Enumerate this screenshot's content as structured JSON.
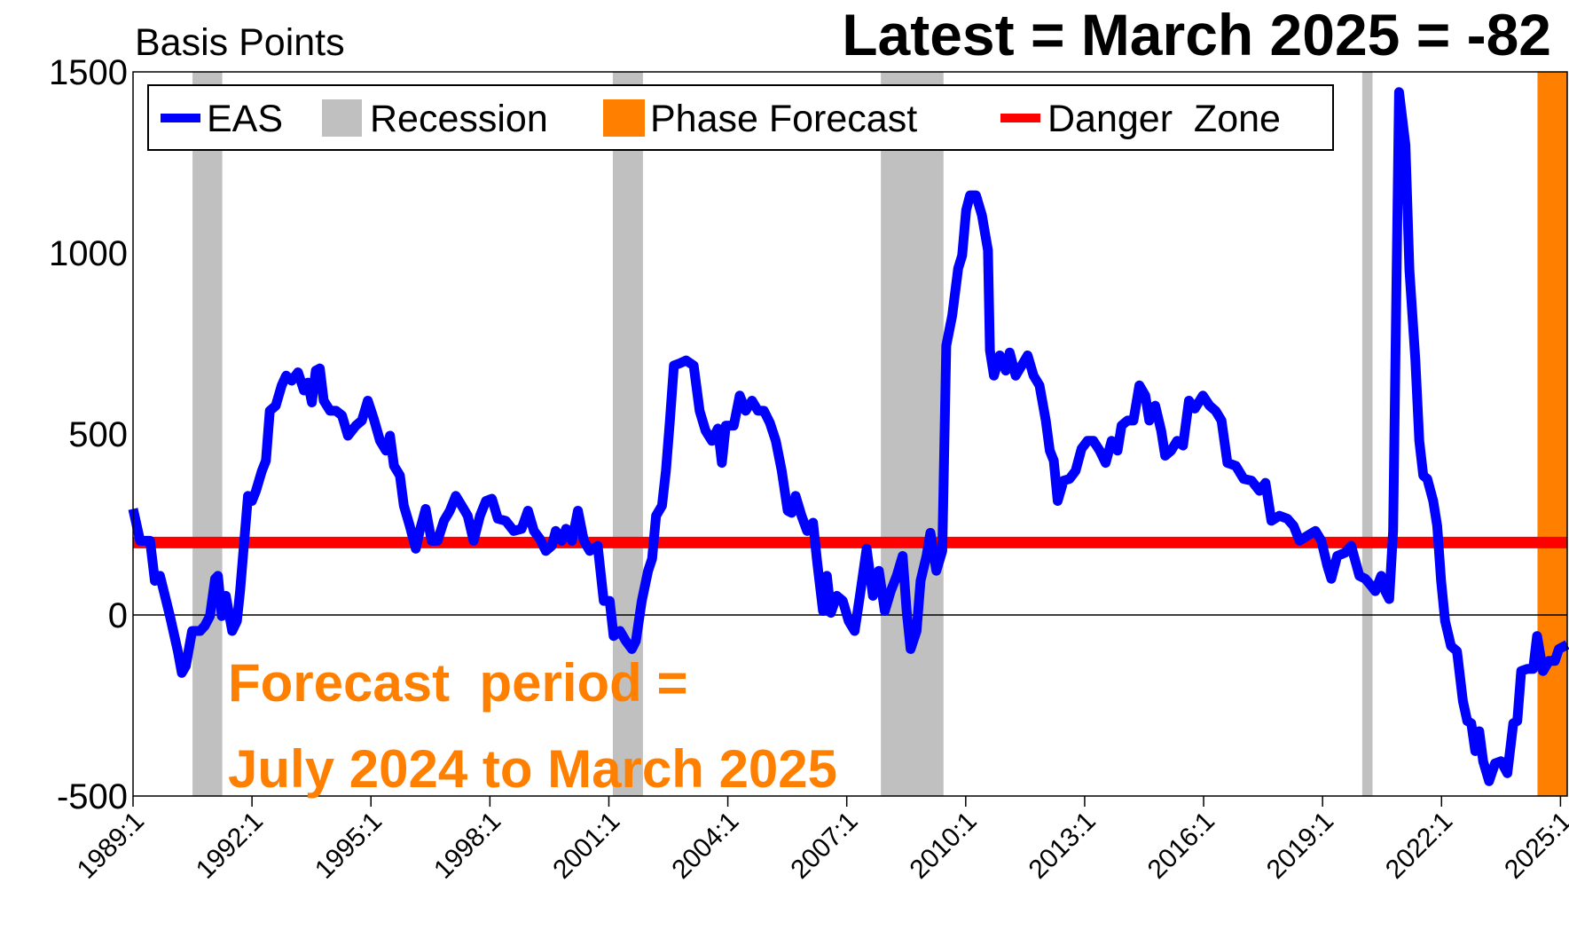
{
  "chart_data": {
    "type": "line",
    "title": "Latest = March 2025 = -82",
    "y_label": "Basis Points",
    "annotation": [
      "Forecast  period =",
      "July 2024 to March 2025"
    ],
    "xlim": [
      1989,
      2025.17
    ],
    "xticks": [
      {
        "value": 1989,
        "label": "1989:1"
      },
      {
        "value": 1992,
        "label": "1992:1"
      },
      {
        "value": 1995,
        "label": "1995:1"
      },
      {
        "value": 1998,
        "label": "1998:1"
      },
      {
        "value": 2001,
        "label": "2001:1"
      },
      {
        "value": 2004,
        "label": "2004:1"
      },
      {
        "value": 2007,
        "label": "2007:1"
      },
      {
        "value": 2010,
        "label": "2010:1"
      },
      {
        "value": 2013,
        "label": "2013:1"
      },
      {
        "value": 2016,
        "label": "2016:1"
      },
      {
        "value": 2019,
        "label": "2019:1"
      },
      {
        "value": 2022,
        "label": "2022:1"
      },
      {
        "value": 2025,
        "label": "2025:1"
      }
    ],
    "ylim": [
      -500,
      1500
    ],
    "yticks": [
      -500,
      0,
      500,
      1000,
      1500
    ],
    "grid": false,
    "legend": "top-left",
    "recessions": {
      "name": "Recession",
      "color": "#c0c0c0",
      "ranges": [
        [
          1990.5,
          1991.25
        ],
        [
          2001.1,
          2001.86
        ],
        [
          2007.86,
          2009.44
        ],
        [
          2020.0,
          2020.26
        ]
      ]
    },
    "forecast": {
      "name": "Phase Forecast",
      "color": "#ff8000",
      "range": [
        2024.42,
        2025.17
      ]
    },
    "danger": {
      "name": "Danger  Zone",
      "color": "#ff0000",
      "value": 200
    },
    "series": [
      {
        "name": "EAS",
        "color": "#0000ff",
        "x": [
          1989.0,
          1989.18,
          1989.43,
          1989.55,
          1989.68,
          1989.93,
          1990.13,
          1990.23,
          1990.33,
          1990.49,
          1990.69,
          1990.81,
          1990.94,
          1991.07,
          1991.14,
          1991.24,
          1991.34,
          1991.5,
          1991.62,
          1991.7,
          1991.9,
          1992.0,
          1992.1,
          1992.25,
          1992.35,
          1992.45,
          1992.6,
          1992.75,
          1992.86,
          1993.0,
          1993.16,
          1993.31,
          1993.41,
          1993.51,
          1993.61,
          1993.71,
          1993.81,
          1993.97,
          1994.12,
          1994.27,
          1994.42,
          1994.62,
          1994.77,
          1994.92,
          1995.07,
          1995.23,
          1995.38,
          1995.48,
          1995.58,
          1995.73,
          1995.83,
          1995.98,
          1996.13,
          1996.23,
          1996.38,
          1996.53,
          1996.68,
          1996.84,
          1996.99,
          1997.14,
          1997.29,
          1997.44,
          1997.59,
          1997.75,
          1997.9,
          1998.05,
          1998.2,
          1998.4,
          1998.6,
          1998.8,
          1998.96,
          1999.11,
          1999.26,
          1999.41,
          1999.56,
          1999.66,
          1999.81,
          1999.92,
          2000.07,
          2000.22,
          2000.37,
          2000.52,
          2000.72,
          2000.87,
          2001.02,
          2001.12,
          2001.28,
          2001.43,
          2001.58,
          2001.68,
          2001.83,
          2001.99,
          2002.09,
          2002.19,
          2002.34,
          2002.44,
          2002.54,
          2002.64,
          2002.79,
          2002.95,
          2003.14,
          2003.29,
          2003.44,
          2003.6,
          2003.75,
          2003.85,
          2003.95,
          2004.15,
          2004.3,
          2004.45,
          2004.61,
          2004.76,
          2004.91,
          2005.06,
          2005.21,
          2005.36,
          2005.51,
          2005.61,
          2005.71,
          2005.86,
          2006.0,
          2006.15,
          2006.25,
          2006.4,
          2006.5,
          2006.6,
          2006.75,
          2006.9,
          2007.05,
          2007.2,
          2007.35,
          2007.5,
          2007.66,
          2007.81,
          2007.96,
          2008.11,
          2008.26,
          2008.41,
          2008.51,
          2008.61,
          2008.76,
          2008.86,
          2009.01,
          2009.11,
          2009.26,
          2009.41,
          2009.51,
          2009.66,
          2009.81,
          2009.91,
          2010.01,
          2010.11,
          2010.26,
          2010.41,
          2010.56,
          2010.61,
          2010.71,
          2010.86,
          2011.01,
          2011.11,
          2011.26,
          2011.41,
          2011.56,
          2011.71,
          2011.86,
          2012.02,
          2012.12,
          2012.22,
          2012.32,
          2012.47,
          2012.62,
          2012.77,
          2012.92,
          2013.07,
          2013.22,
          2013.38,
          2013.53,
          2013.68,
          2013.83,
          2013.93,
          2014.08,
          2014.23,
          2014.38,
          2014.53,
          2014.63,
          2014.78,
          2014.93,
          2015.03,
          2015.18,
          2015.33,
          2015.48,
          2015.63,
          2015.78,
          2015.98,
          2016.15,
          2016.3,
          2016.45,
          2016.6,
          2016.81,
          2017.01,
          2017.21,
          2017.41,
          2017.56,
          2017.71,
          2017.91,
          2018.11,
          2018.27,
          2018.42,
          2018.62,
          2018.82,
          2018.97,
          2019.12,
          2019.22,
          2019.37,
          2019.57,
          2019.72,
          2019.93,
          2020.08,
          2020.23,
          2020.33,
          2020.48,
          2020.58,
          2020.68,
          2020.78,
          2020.93,
          2021.09,
          2021.19,
          2021.34,
          2021.44,
          2021.54,
          2021.64,
          2021.79,
          2021.89,
          2021.99,
          2022.09,
          2022.24,
          2022.39,
          2022.54,
          2022.65,
          2022.75,
          2022.85,
          2022.95,
          2023.05,
          2023.2,
          2023.35,
          2023.5,
          2023.66,
          2023.81,
          2023.91,
          2024.01,
          2024.16,
          2024.31,
          2024.41,
          2024.56,
          2024.71,
          2024.86,
          2024.96,
          2025.17
        ],
        "values": [
          293,
          205,
          205,
          94,
          108,
          -3,
          -100,
          -160,
          -141,
          -44,
          -44,
          -30,
          -3,
          100,
          108,
          -3,
          53,
          -44,
          -17,
          66,
          329,
          315,
          343,
          398,
          426,
          564,
          578,
          634,
          661,
          647,
          670,
          620,
          642,
          587,
          675,
          681,
          592,
          564,
          564,
          551,
          495,
          523,
          537,
          592,
          542,
          481,
          454,
          495,
          412,
          385,
          302,
          246,
          183,
          232,
          293,
          205,
          205,
          260,
          288,
          329,
          302,
          274,
          205,
          274,
          315,
          321,
          266,
          260,
          232,
          238,
          288,
          232,
          210,
          177,
          191,
          232,
          205,
          238,
          205,
          288,
          205,
          177,
          191,
          39,
          39,
          -58,
          -44,
          -72,
          -94,
          -72,
          39,
          122,
          155,
          274,
          302,
          398,
          537,
          689,
          695,
          703,
          689,
          564,
          509,
          481,
          515,
          420,
          523,
          523,
          606,
          564,
          592,
          564,
          564,
          531,
          481,
          398,
          288,
          282,
          329,
          274,
          232,
          255,
          149,
          11,
          108,
          6,
          53,
          39,
          -17,
          -44,
          66,
          183,
          53,
          122,
          11,
          66,
          108,
          163,
          11,
          -94,
          -44,
          94,
          163,
          227,
          122,
          177,
          744,
          827,
          957,
          993,
          1118,
          1159,
          1159,
          1104,
          1007,
          731,
          661,
          717,
          675,
          725,
          661,
          689,
          717,
          661,
          634,
          537,
          454,
          426,
          315,
          371,
          376,
          398,
          459,
          481,
          481,
          454,
          420,
          481,
          454,
          523,
          537,
          537,
          634,
          606,
          537,
          578,
          509,
          440,
          454,
          481,
          468,
          592,
          570,
          606,
          578,
          564,
          537,
          420,
          412,
          376,
          371,
          343,
          365,
          260,
          274,
          266,
          246,
          205,
          219,
          232,
          205,
          136,
          100,
          163,
          172,
          191,
          108,
          100,
          80,
          66,
          108,
          66,
          44,
          232,
          1444,
          1298,
          952,
          703,
          481,
          385,
          376,
          315,
          246,
          94,
          -17,
          -86,
          -100,
          -238,
          -293,
          -299,
          -376,
          -321,
          -404,
          -459,
          -410,
          -404,
          -437,
          -299,
          -293,
          -155,
          -149,
          -149,
          -58,
          -155,
          -127,
          -127,
          -94,
          -82
        ]
      }
    ]
  }
}
